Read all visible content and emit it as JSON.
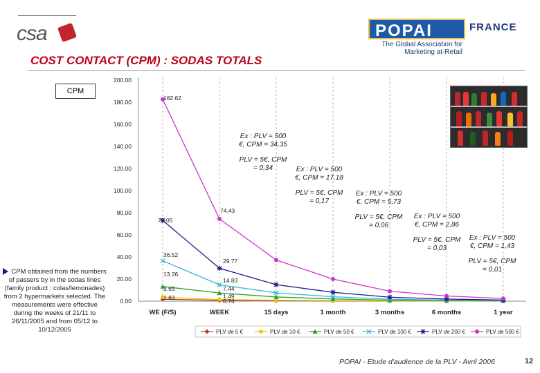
{
  "header": {
    "org_logo": "csa",
    "partner_logo": "POPAI",
    "partner_tagline": "The Global Association for Marketing at-Retail",
    "partner_country": "FRANCE",
    "title": "COST CONTACT (CPM) : SODAS TOTALS"
  },
  "chart_data": {
    "type": "line",
    "title": "CPM",
    "categories": [
      "WE (F/S)",
      "WEEK",
      "15 days",
      "1 month",
      "3 months",
      "6 months",
      "1 year"
    ],
    "ylim": [
      0,
      200
    ],
    "yticks": [
      "200.00",
      "180.00",
      "160.00",
      "140.00",
      "120.00",
      "100.00",
      "80.00",
      "60.00",
      "40.00",
      "20.00",
      "0.00"
    ],
    "grid": "vertical dashed",
    "legend_position": "bottom",
    "series": [
      {
        "name": "PLV de 5 €",
        "color": "#c0392b",
        "marker": "diamond",
        "values": [
          1.83,
          0.74,
          0.5,
          0.3,
          0.15,
          0.08,
          0.05
        ]
      },
      {
        "name": "PLV de 10 €",
        "color": "#e8c800",
        "marker": "square",
        "values": [
          3.65,
          1.49,
          0.9,
          0.5,
          0.25,
          0.15,
          0.08
        ]
      },
      {
        "name": "PLV de 50 €",
        "color": "#2aa02a",
        "marker": "triangle",
        "values": [
          13.26,
          7.44,
          3.8,
          2.0,
          0.9,
          0.5,
          0.3
        ]
      },
      {
        "name": "PLV de 100 €",
        "color": "#33b5d6",
        "marker": "x",
        "values": [
          36.52,
          14.83,
          7.5,
          4.0,
          1.8,
          1.0,
          0.5
        ]
      },
      {
        "name": "PLV de 200 €",
        "color": "#1a1a8c",
        "marker": "star",
        "values": [
          73.05,
          29.77,
          14.9,
          8.0,
          3.6,
          1.9,
          1.0
        ]
      },
      {
        "name": "PLV de 500 €",
        "color": "#cc33cc",
        "marker": "circle",
        "values": [
          182.62,
          74.43,
          37.2,
          20.0,
          9.0,
          4.7,
          2.4
        ]
      }
    ],
    "data_labels": [
      "182.62",
      "73.05",
      "74.43",
      "36.52",
      "29.77",
      "13.26",
      "14.83",
      "3.65",
      "7.44",
      "1.83",
      "1.49",
      "0.74"
    ],
    "annotations": [
      {
        "example": "Ex : PLV = 500 €, CPM = 34,35",
        "cost": "PLV = 5€, CPM = 0,34"
      },
      {
        "example": "Ex : PLV = 500 €, CPM = 17,18",
        "cost": "PLV = 5€, CPM = 0,17"
      },
      {
        "example": "Ex : PLV = 500 €, CPM = 5,73",
        "cost": "PLV = 5€, CPM = 0,06"
      },
      {
        "example": "Ex : PLV = 500 €, CPM = 2,86",
        "cost": "PLV = 5€, CPM = 0,03"
      },
      {
        "example": "Ex : PLV = 500 €, CPM = 1,43",
        "cost": "PLV = 5€, CPM = 0,01"
      }
    ]
  },
  "note": "CPM obtained from the numbers of passers by in the sodas lines (family product : colas/lemonades) from 2 hypermarkets selected. The measurements were effective during the weeks of 21/11 to 26/11/2005 and from 05/12 to 10/12/2005",
  "footer": {
    "source": "POPAI - Etude d'audience de la PLV - Avril 2006",
    "page": "12"
  }
}
